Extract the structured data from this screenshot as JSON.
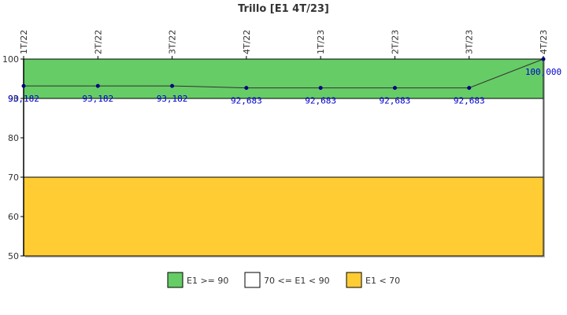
{
  "chart_data": {
    "type": "line",
    "title": "Trillo [E1 4T/23]",
    "categories": [
      "1T/22",
      "2T/22",
      "3T/22",
      "4T/22",
      "1T/23",
      "2T/23",
      "3T/23",
      "4T/23"
    ],
    "series": [
      {
        "values": [
          93.182,
          93.182,
          93.182,
          92.683,
          92.683,
          92.683,
          92.683,
          100.0
        ],
        "labels": [
          "93,182",
          "93,182",
          "93,182",
          "92,683",
          "92,683",
          "92,683",
          "92,683",
          "100,000"
        ],
        "color": "#000080",
        "line_color": "#333333"
      }
    ],
    "ylim": [
      50,
      100
    ],
    "yticks": [
      50,
      60,
      70,
      80,
      90,
      100
    ],
    "grid": false,
    "bands": [
      {
        "from": 90,
        "to": 100,
        "color": "#66cc66",
        "label": "E1 >= 90"
      },
      {
        "from": 70,
        "to": 90,
        "color": "#ffffff",
        "label": "70 <= E1 < 90"
      },
      {
        "from": 50,
        "to": 70,
        "color": "#ffcc33",
        "label": "E1 < 70"
      }
    ],
    "legend_position": "bottom-center"
  }
}
